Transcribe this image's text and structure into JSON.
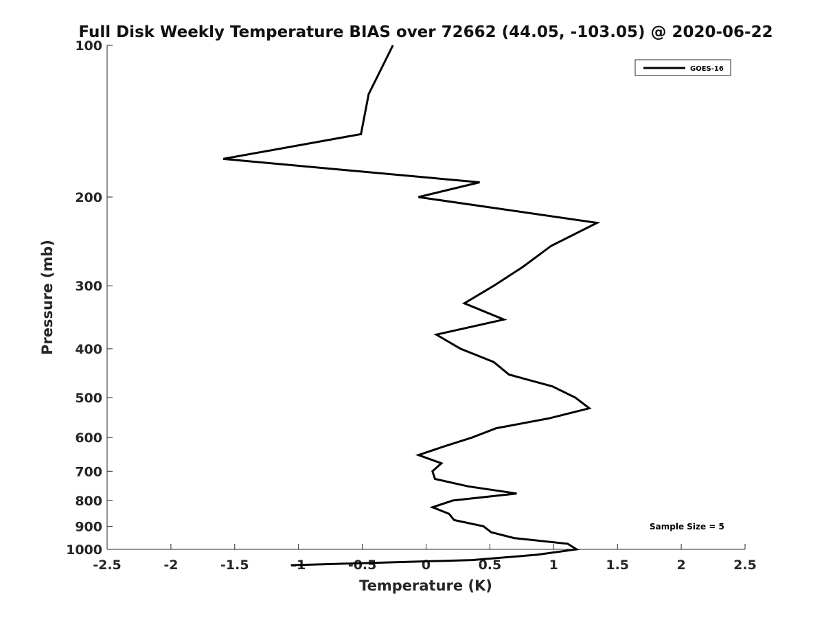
{
  "chart_data": {
    "type": "line",
    "title": "Full Disk Weekly Temperature BIAS over 72662 (44.05, -103.05) @ 2020-06-22",
    "xlabel": "Temperature (K)",
    "ylabel": "Pressure (mb)",
    "xlim": [
      -2.5,
      2.5
    ],
    "ylim": [
      1000,
      100
    ],
    "y_scale": "log",
    "y_reversed": true,
    "grid": false,
    "legend_position": "top-right",
    "x_ticks": [
      -2.5,
      -2,
      -1.5,
      -1,
      -0.5,
      0,
      0.5,
      1,
      1.5,
      2,
      2.5
    ],
    "x_tick_labels": [
      "-2.5",
      "-2",
      "-1.5",
      "-1",
      "-0.5",
      "0",
      "0.5",
      "1",
      "1.5",
      "2",
      "2.5"
    ],
    "y_ticks": [
      100,
      200,
      300,
      400,
      500,
      600,
      700,
      800,
      900,
      1000
    ],
    "y_tick_labels": [
      "100",
      "200",
      "300",
      "400",
      "500",
      "600",
      "700",
      "800",
      "900",
      "1000"
    ],
    "series": [
      {
        "name": "GOES-16",
        "color": "#000000",
        "points": [
          {
            "x": -0.26,
            "p": 100
          },
          {
            "x": -0.45,
            "p": 125
          },
          {
            "x": -0.51,
            "p": 150
          },
          {
            "x": -1.59,
            "p": 168
          },
          {
            "x": 0.42,
            "p": 187
          },
          {
            "x": -0.06,
            "p": 200
          },
          {
            "x": 1.34,
            "p": 225
          },
          {
            "x": 0.98,
            "p": 250
          },
          {
            "x": 0.76,
            "p": 275
          },
          {
            "x": 0.53,
            "p": 300
          },
          {
            "x": 0.3,
            "p": 325
          },
          {
            "x": 0.61,
            "p": 350
          },
          {
            "x": 0.08,
            "p": 375
          },
          {
            "x": 0.27,
            "p": 400
          },
          {
            "x": 0.53,
            "p": 425
          },
          {
            "x": 0.65,
            "p": 450
          },
          {
            "x": 0.99,
            "p": 475
          },
          {
            "x": 1.17,
            "p": 500
          },
          {
            "x": 1.28,
            "p": 525
          },
          {
            "x": 0.96,
            "p": 550
          },
          {
            "x": 0.55,
            "p": 575
          },
          {
            "x": 0.36,
            "p": 600
          },
          {
            "x": 0.14,
            "p": 625
          },
          {
            "x": -0.06,
            "p": 650
          },
          {
            "x": 0.12,
            "p": 675
          },
          {
            "x": 0.05,
            "p": 700
          },
          {
            "x": 0.07,
            "p": 725
          },
          {
            "x": 0.33,
            "p": 750
          },
          {
            "x": 0.71,
            "p": 775
          },
          {
            "x": 0.21,
            "p": 800
          },
          {
            "x": 0.05,
            "p": 825
          },
          {
            "x": 0.18,
            "p": 850
          },
          {
            "x": 0.22,
            "p": 875
          },
          {
            "x": 0.45,
            "p": 900
          },
          {
            "x": 0.51,
            "p": 925
          },
          {
            "x": 0.69,
            "p": 950
          },
          {
            "x": 1.11,
            "p": 975
          },
          {
            "x": 1.18,
            "p": 1000
          },
          {
            "x": 0.87,
            "p": 1025
          },
          {
            "x": 0.36,
            "p": 1050
          },
          {
            "x": -1.06,
            "p": 1075
          }
        ]
      }
    ],
    "annotations": [
      {
        "text": "Sample Size = 5",
        "position": "bottom-right"
      }
    ]
  }
}
